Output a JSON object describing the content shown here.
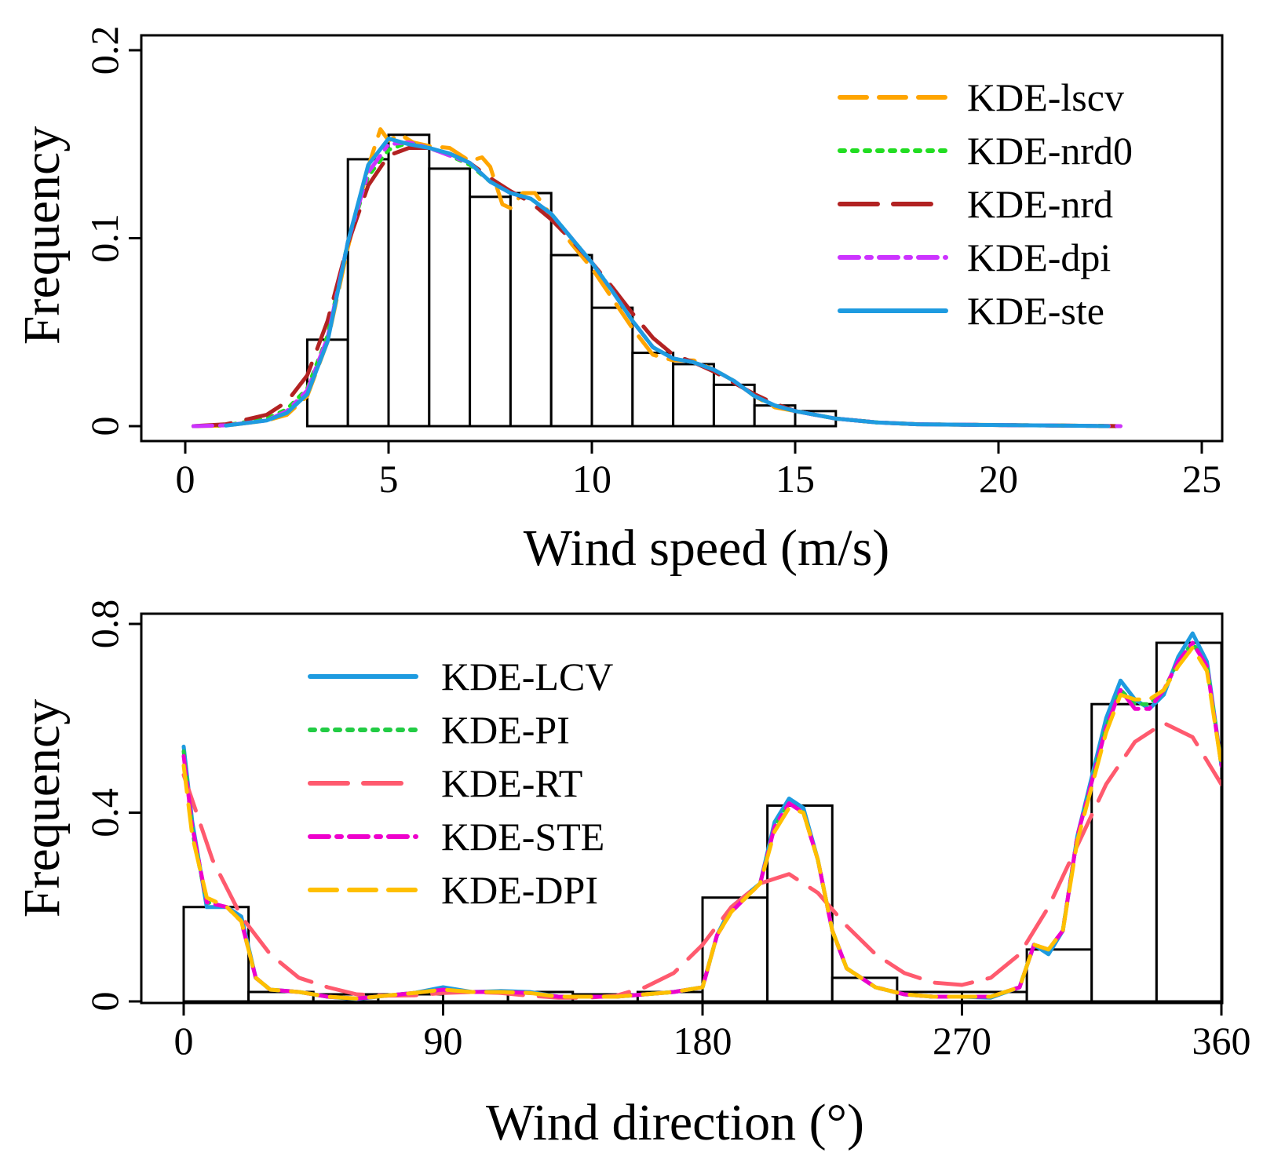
{
  "chart_data": [
    {
      "type": "histogram_with_density",
      "xlabel": "Wind speed (m/s)",
      "ylabel": "Frequency",
      "xlim": [
        0,
        25
      ],
      "ylim": [
        0,
        0.2
      ],
      "xticks": [
        "0",
        "5",
        "10",
        "15",
        "20",
        "25"
      ],
      "yticks": [
        "0",
        "0.1",
        "0.2"
      ],
      "grid": false,
      "legend_position": "top-right",
      "histogram": {
        "bin_edges": [
          3,
          4,
          5,
          6,
          7,
          8,
          9,
          10,
          11,
          12,
          13,
          14,
          15,
          16
        ],
        "values": [
          0.046,
          0.142,
          0.155,
          0.137,
          0.122,
          0.124,
          0.091,
          0.063,
          0.039,
          0.033,
          0.022,
          0.011,
          0.008
        ]
      },
      "series": [
        {
          "name": "KDE-lscv",
          "color": "#FFA500",
          "style": "dashed",
          "x": [
            0.2,
            1,
            2,
            2.5,
            3,
            3.5,
            4,
            4.5,
            4.8,
            5,
            5.3,
            5.6,
            6,
            6.5,
            7,
            7.3,
            7.5,
            7.8,
            8,
            8.3,
            8.6,
            9,
            9.5,
            10,
            10.5,
            11,
            11.5,
            12,
            12.5,
            13,
            13.5,
            14,
            14.5,
            15,
            16,
            17,
            18,
            20,
            22,
            23
          ],
          "y": [
            0,
            0.0003,
            0.003,
            0.006,
            0.016,
            0.045,
            0.095,
            0.138,
            0.158,
            0.152,
            0.155,
            0.151,
            0.149,
            0.148,
            0.141,
            0.143,
            0.138,
            0.118,
            0.116,
            0.124,
            0.124,
            0.112,
            0.097,
            0.084,
            0.068,
            0.052,
            0.038,
            0.035,
            0.035,
            0.03,
            0.024,
            0.016,
            0.01,
            0.008,
            0.004,
            0.002,
            0.001,
            0.0006,
            0.0002,
            0
          ]
        },
        {
          "name": "KDE-nrd0",
          "color": "#22DD22",
          "style": "dotted",
          "x": [
            0.2,
            1,
            2,
            2.5,
            3,
            3.5,
            4,
            4.5,
            5,
            5.5,
            6,
            6.5,
            7,
            7.5,
            8,
            8.5,
            9,
            9.5,
            10,
            10.5,
            11,
            11.5,
            12,
            12.5,
            13,
            13.5,
            14,
            14.5,
            15,
            16,
            17,
            18,
            20,
            22,
            23
          ],
          "y": [
            0,
            0.0005,
            0.004,
            0.009,
            0.02,
            0.048,
            0.098,
            0.133,
            0.147,
            0.151,
            0.148,
            0.144,
            0.139,
            0.13,
            0.124,
            0.121,
            0.113,
            0.1,
            0.087,
            0.072,
            0.056,
            0.042,
            0.036,
            0.034,
            0.03,
            0.024,
            0.016,
            0.011,
            0.008,
            0.004,
            0.002,
            0.001,
            0.0006,
            0.0002,
            0
          ]
        },
        {
          "name": "KDE-nrd",
          "color": "#B22222",
          "style": "longdash",
          "x": [
            0.2,
            1,
            2,
            2.5,
            3,
            3.5,
            4,
            4.5,
            5,
            5.5,
            6,
            6.5,
            7,
            7.5,
            8,
            8.5,
            9,
            9.5,
            10,
            10.5,
            11,
            11.5,
            12,
            12.5,
            13,
            13.5,
            14,
            14.5,
            15,
            16,
            17,
            18,
            20,
            22,
            23
          ],
          "y": [
            0,
            0.001,
            0.006,
            0.013,
            0.027,
            0.056,
            0.097,
            0.128,
            0.144,
            0.148,
            0.148,
            0.145,
            0.14,
            0.132,
            0.125,
            0.119,
            0.11,
            0.099,
            0.087,
            0.074,
            0.06,
            0.047,
            0.038,
            0.034,
            0.029,
            0.023,
            0.017,
            0.012,
            0.008,
            0.004,
            0.002,
            0.001,
            0.0006,
            0.0002,
            0
          ]
        },
        {
          "name": "KDE-dpi",
          "color": "#CC33FF",
          "style": "dotdash",
          "x": [
            0.2,
            1,
            2,
            2.5,
            3,
            3.5,
            4,
            4.5,
            5,
            5.5,
            6,
            6.5,
            7,
            7.5,
            8,
            8.5,
            9,
            9.5,
            10,
            10.5,
            11,
            11.5,
            12,
            12.5,
            13,
            13.5,
            14,
            14.5,
            15,
            16,
            17,
            18,
            20,
            22,
            23
          ],
          "y": [
            0,
            0.0004,
            0.003,
            0.008,
            0.019,
            0.047,
            0.098,
            0.135,
            0.15,
            0.151,
            0.148,
            0.144,
            0.14,
            0.13,
            0.124,
            0.121,
            0.113,
            0.1,
            0.087,
            0.072,
            0.056,
            0.042,
            0.036,
            0.034,
            0.03,
            0.024,
            0.016,
            0.011,
            0.008,
            0.004,
            0.002,
            0.001,
            0.0006,
            0.0002,
            0
          ]
        },
        {
          "name": "KDE-ste",
          "color": "#1E9BE0",
          "style": "solid",
          "x": [
            1,
            2,
            2.5,
            3,
            3.5,
            4,
            4.5,
            5,
            5.5,
            6,
            6.5,
            7,
            7.5,
            8,
            8.5,
            9,
            9.5,
            10,
            10.5,
            11,
            11.5,
            12,
            12.5,
            13,
            13.5,
            14,
            14.5,
            15,
            16,
            17,
            18,
            20,
            22,
            22.7
          ],
          "y": [
            0.0003,
            0.003,
            0.007,
            0.017,
            0.045,
            0.098,
            0.139,
            0.153,
            0.15,
            0.148,
            0.145,
            0.14,
            0.13,
            0.124,
            0.121,
            0.113,
            0.1,
            0.087,
            0.072,
            0.056,
            0.042,
            0.036,
            0.034,
            0.03,
            0.024,
            0.016,
            0.011,
            0.008,
            0.004,
            0.002,
            0.001,
            0.0006,
            0.0002,
            0
          ]
        }
      ]
    },
    {
      "type": "histogram_with_density",
      "xlabel": "Wind direction (°)",
      "ylabel": "Frequency",
      "xlim": [
        0,
        360
      ],
      "ylim": [
        0,
        0.8
      ],
      "xticks": [
        "0",
        "90",
        "180",
        "270",
        "360"
      ],
      "yticks": [
        "0",
        "0.4",
        "0.8"
      ],
      "grid": false,
      "legend_position": "top-left",
      "histogram": {
        "bin_edges": [
          0,
          22.5,
          45,
          67.5,
          90,
          112.5,
          135,
          157.5,
          180,
          202.5,
          225,
          247.5,
          270,
          292.5,
          315,
          337.5,
          360
        ],
        "values": [
          0.2,
          0.02,
          0.015,
          0.015,
          0.02,
          0.02,
          0.015,
          0.02,
          0.22,
          0.415,
          0.05,
          0.02,
          0.02,
          0.11,
          0.63,
          0.76
        ]
      },
      "series": [
        {
          "name": "KDE-LCV",
          "color": "#1E9BE0",
          "style": "solid",
          "x": [
            0,
            3,
            8,
            15,
            20,
            25,
            30,
            40,
            50,
            60,
            70,
            80,
            90,
            100,
            110,
            120,
            130,
            140,
            150,
            160,
            170,
            180,
            185,
            190,
            200,
            205,
            210,
            215,
            220,
            225,
            230,
            240,
            250,
            260,
            270,
            280,
            290,
            295,
            300,
            305,
            310,
            320,
            325,
            330,
            335,
            340,
            345,
            350,
            355,
            360
          ],
          "y": [
            0.54,
            0.38,
            0.2,
            0.2,
            0.18,
            0.05,
            0.025,
            0.02,
            0.01,
            0.005,
            0.012,
            0.018,
            0.03,
            0.02,
            0.022,
            0.02,
            0.01,
            0.01,
            0.01,
            0.015,
            0.02,
            0.03,
            0.14,
            0.2,
            0.25,
            0.38,
            0.43,
            0.41,
            0.3,
            0.15,
            0.07,
            0.03,
            0.015,
            0.01,
            0.01,
            0.008,
            0.03,
            0.12,
            0.1,
            0.15,
            0.35,
            0.6,
            0.68,
            0.64,
            0.62,
            0.65,
            0.73,
            0.78,
            0.72,
            0.5
          ]
        },
        {
          "name": "KDE-PI",
          "color": "#22CC44",
          "style": "dotted",
          "x": [
            0,
            3,
            8,
            15,
            20,
            25,
            30,
            40,
            50,
            60,
            70,
            80,
            90,
            100,
            110,
            120,
            130,
            140,
            150,
            160,
            170,
            180,
            185,
            190,
            200,
            205,
            210,
            215,
            220,
            225,
            230,
            240,
            250,
            260,
            270,
            280,
            290,
            295,
            300,
            305,
            310,
            320,
            325,
            330,
            335,
            340,
            345,
            350,
            355,
            360
          ],
          "y": [
            0.53,
            0.36,
            0.21,
            0.2,
            0.17,
            0.05,
            0.025,
            0.02,
            0.01,
            0.006,
            0.012,
            0.018,
            0.025,
            0.02,
            0.02,
            0.018,
            0.01,
            0.01,
            0.01,
            0.015,
            0.02,
            0.03,
            0.14,
            0.19,
            0.25,
            0.37,
            0.42,
            0.4,
            0.3,
            0.15,
            0.07,
            0.03,
            0.015,
            0.01,
            0.01,
            0.01,
            0.03,
            0.12,
            0.11,
            0.15,
            0.35,
            0.58,
            0.66,
            0.63,
            0.63,
            0.66,
            0.72,
            0.76,
            0.71,
            0.5
          ]
        },
        {
          "name": "KDE-RT",
          "color": "#FF5A6E",
          "style": "longdash",
          "x": [
            0,
            10,
            20,
            30,
            40,
            50,
            60,
            70,
            80,
            90,
            100,
            110,
            120,
            130,
            140,
            150,
            160,
            170,
            180,
            190,
            200,
            210,
            220,
            230,
            240,
            250,
            260,
            270,
            280,
            290,
            300,
            310,
            320,
            330,
            340,
            350,
            360
          ],
          "y": [
            0.48,
            0.3,
            0.18,
            0.1,
            0.05,
            0.03,
            0.015,
            0.012,
            0.013,
            0.018,
            0.02,
            0.018,
            0.012,
            0.008,
            0.008,
            0.012,
            0.03,
            0.06,
            0.12,
            0.2,
            0.25,
            0.27,
            0.23,
            0.16,
            0.1,
            0.06,
            0.04,
            0.035,
            0.05,
            0.1,
            0.2,
            0.33,
            0.46,
            0.55,
            0.59,
            0.56,
            0.46
          ]
        },
        {
          "name": "KDE-STE",
          "color": "#EE00CC",
          "style": "dotdash",
          "x": [
            0,
            3,
            8,
            15,
            20,
            25,
            30,
            40,
            50,
            60,
            70,
            80,
            90,
            100,
            110,
            120,
            130,
            140,
            150,
            160,
            170,
            180,
            185,
            190,
            200,
            205,
            210,
            215,
            220,
            225,
            230,
            240,
            250,
            260,
            270,
            280,
            290,
            295,
            300,
            305,
            310,
            320,
            325,
            330,
            335,
            340,
            345,
            350,
            355,
            360
          ],
          "y": [
            0.52,
            0.37,
            0.21,
            0.2,
            0.17,
            0.05,
            0.025,
            0.02,
            0.01,
            0.006,
            0.012,
            0.018,
            0.025,
            0.02,
            0.02,
            0.018,
            0.01,
            0.01,
            0.01,
            0.015,
            0.02,
            0.03,
            0.14,
            0.19,
            0.25,
            0.37,
            0.42,
            0.4,
            0.3,
            0.15,
            0.07,
            0.03,
            0.015,
            0.01,
            0.01,
            0.01,
            0.03,
            0.12,
            0.11,
            0.15,
            0.35,
            0.58,
            0.66,
            0.62,
            0.62,
            0.66,
            0.72,
            0.76,
            0.71,
            0.5
          ]
        },
        {
          "name": "KDE-DPI",
          "color": "#FFBF00",
          "style": "dashed",
          "x": [
            0,
            3,
            8,
            15,
            20,
            25,
            30,
            40,
            50,
            60,
            70,
            80,
            90,
            100,
            110,
            120,
            130,
            140,
            150,
            160,
            170,
            180,
            185,
            190,
            200,
            205,
            210,
            215,
            220,
            225,
            230,
            240,
            250,
            260,
            270,
            280,
            290,
            295,
            300,
            305,
            310,
            320,
            325,
            330,
            335,
            340,
            345,
            350,
            355,
            360
          ],
          "y": [
            0.5,
            0.35,
            0.22,
            0.2,
            0.17,
            0.05,
            0.025,
            0.02,
            0.01,
            0.006,
            0.012,
            0.018,
            0.025,
            0.02,
            0.02,
            0.018,
            0.01,
            0.01,
            0.01,
            0.015,
            0.02,
            0.03,
            0.14,
            0.19,
            0.25,
            0.36,
            0.41,
            0.4,
            0.3,
            0.15,
            0.07,
            0.03,
            0.015,
            0.01,
            0.01,
            0.01,
            0.03,
            0.12,
            0.11,
            0.15,
            0.34,
            0.57,
            0.65,
            0.64,
            0.64,
            0.66,
            0.71,
            0.75,
            0.7,
            0.5
          ]
        }
      ]
    }
  ]
}
